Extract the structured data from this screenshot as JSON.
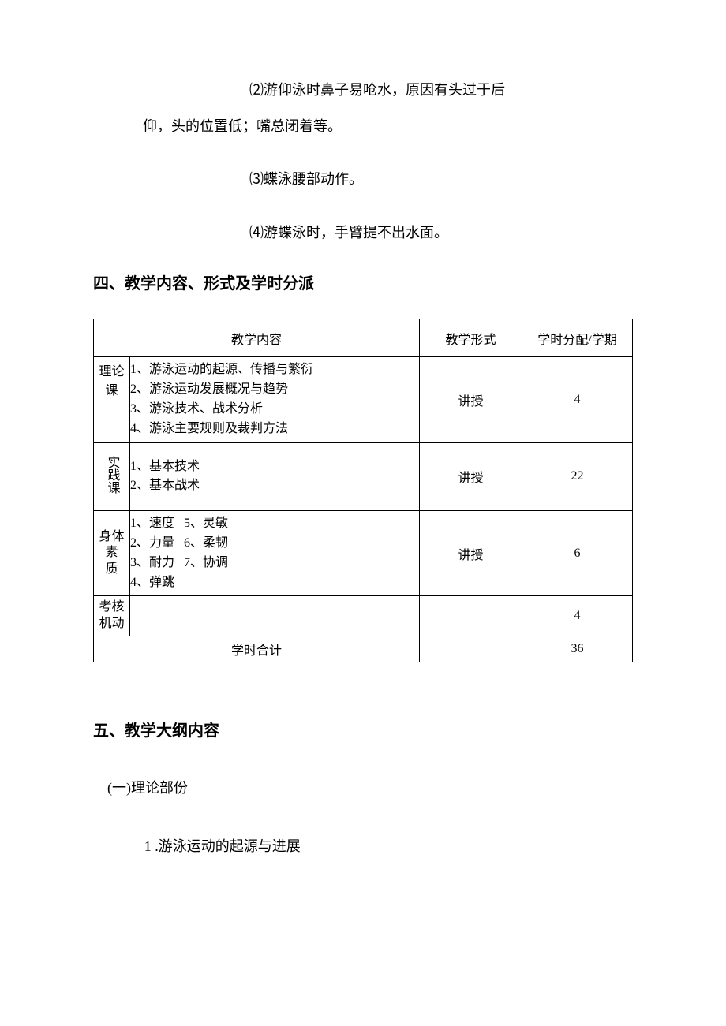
{
  "paragraphs": {
    "p2_first": "⑵游仰泳时鼻子易呛水，原因有头过于后",
    "p2_cont": "仰，头的位置低；嘴总闭着等。",
    "p3": "⑶蝶泳腰部动作。",
    "p4": "⑷游蝶泳时，手臂提不出水面。"
  },
  "heading4": "四、教学内容、形式及学时分派",
  "table": {
    "headers": {
      "content": "教学内容",
      "form": "教学形式",
      "hours": "学时分配/学期"
    },
    "rows": [
      {
        "cat": "理论课",
        "cat_vertical": false,
        "cat_stack": false,
        "content": "1、游泳运动的起源、传播与繁衍\n2、游泳运动发展概况与趋势\n3、游泳技术、战术分析\n4、游泳主要规则及裁判方法",
        "form": "讲授",
        "hours": "4",
        "top_align": true
      },
      {
        "cat": "实践课",
        "cat_vertical": true,
        "cat_stack": false,
        "content": "1、基本技术\n2、基本战术",
        "form": "讲授",
        "hours": "22",
        "pad": true
      },
      {
        "cat": "身体素质",
        "cat_vertical": false,
        "cat_stack": true,
        "cat_line1": "身体素",
        "cat_line2": "质",
        "content": "1、速度   5、灵敏\n2、力量   6、柔韧\n3、耐力   7、协调\n4、弹跳",
        "form": "讲授",
        "hours": "6"
      },
      {
        "cat": "考核机动",
        "cat_vertical": false,
        "cat_stack": true,
        "cat_line1": "考核",
        "cat_line2": "机动",
        "content": "",
        "form": "",
        "hours": "4"
      }
    ],
    "footer": {
      "label": "学时合计",
      "form": "",
      "hours": "36"
    }
  },
  "heading5": "五、教学大纲内容",
  "sub5_1": "(一)理论部份",
  "item5_1_1": "1 .游泳运动的起源与进展",
  "colors": {
    "text": "#000000",
    "bg": "#ffffff",
    "border": "#000000"
  }
}
